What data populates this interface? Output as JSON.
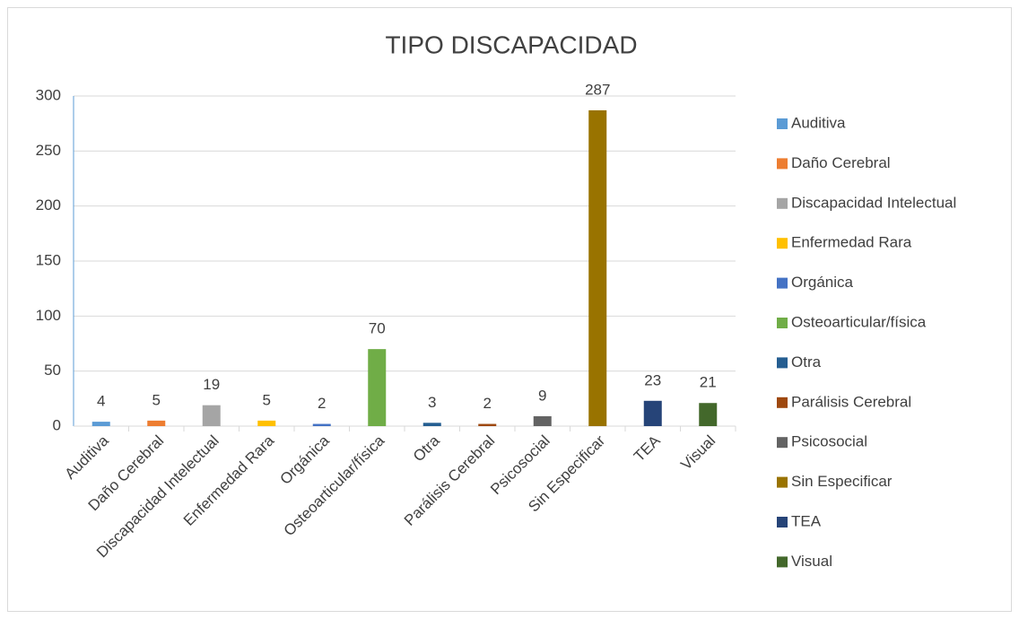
{
  "chart_data": {
    "type": "bar",
    "title": "TIPO DISCAPACIDAD",
    "categories": [
      "Auditiva",
      "Daño Cerebral",
      "Discapacidad Intelectual",
      "Enfermedad Rara",
      "Orgánica",
      "Osteoarticular/física",
      "Otra",
      "Parálisis Cerebral",
      "Psicosocial",
      "Sin Especificar",
      "TEA",
      "Visual"
    ],
    "values": [
      4,
      5,
      19,
      5,
      2,
      70,
      3,
      2,
      9,
      287,
      23,
      21
    ],
    "colors": [
      "#5b9bd5",
      "#ed7d31",
      "#a5a5a5",
      "#ffc000",
      "#4472c4",
      "#70ad47",
      "#255e91",
      "#9e480e",
      "#636363",
      "#997300",
      "#264478",
      "#43682b"
    ],
    "ylim": [
      0,
      300
    ],
    "yticks": [
      0,
      50,
      100,
      150,
      200,
      250,
      300
    ],
    "grid": true,
    "legend": "right"
  }
}
